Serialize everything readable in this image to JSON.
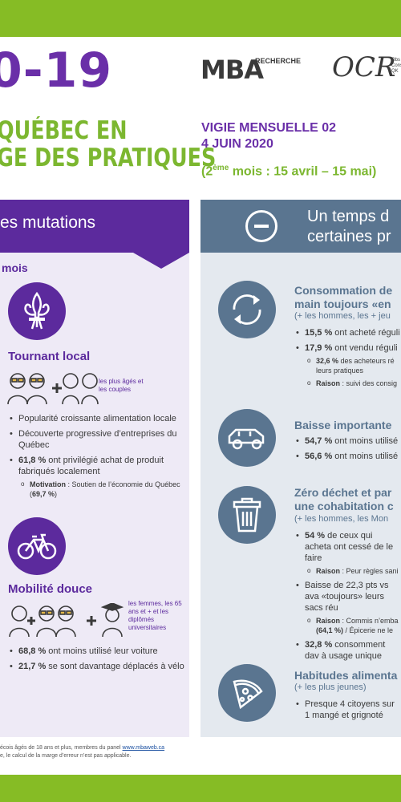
{
  "header": {
    "title": "0-19",
    "subtitle_line1": "QUÉBEC EN",
    "subtitle_line2": "GE DES PRATIQUES",
    "vigie_line1": "VIGIE MENSUELLE 02",
    "vigie_line2": "4 JUIN 2020",
    "period_prefix": "(2",
    "period_sup": "ème",
    "period_rest": " mois : 15 avril – 15 mai)",
    "logo_mba": "MBA",
    "logo_recherche": "RECHERCHE",
    "logo_ocr": "OCR",
    "logo_ocr_small": "Obs Cons QK"
  },
  "left": {
    "heading": "es mutations",
    "mois": "mois",
    "local": {
      "title": "Tournant local",
      "group": "les plus âgés et les couples",
      "bullets": [
        "Popularité croissante alimentation locale",
        "Découverte progressive d’entreprises du Québec"
      ],
      "b3_bold": "61,8 %",
      "b3_rest": " ont privilégié achat de produit fabriqués localement",
      "sub_bold": "Motivation",
      "sub_rest": " : Soutien de l’économie du Québec (",
      "sub_pct": "69,7 %",
      "sub_end": ")"
    },
    "mobilite": {
      "title": "Mobilité douce",
      "group": "les femmes, les 65 ans et + et les diplômés universitaires",
      "b1_bold": "68,8 %",
      "b1_rest": " ont moins utilisé leur voiture",
      "b2_bold": "21,7 %",
      "b2_rest": " se sont davantage déplacés à vélo"
    }
  },
  "right": {
    "heading_line1": "Un temps d",
    "heading_line2": "certaines pr",
    "conso": {
      "title_line1": "Consommation de",
      "title_line2": "main toujours «en",
      "sub": "(+ les hommes, les + jeu",
      "b1_bold": "15,5 %",
      "b1_rest": " ont acheté réguli",
      "b2_bold": "17,9 %",
      "b2_rest": " ont vendu réguli",
      "s1_bold": "32,6 %",
      "s1_rest": " des acheteurs ré leurs pratiques",
      "s2_bold": "Raison",
      "s2_rest": " : suivi des consig"
    },
    "baisse": {
      "title": "Baisse importante",
      "b1_bold": "54,7 %",
      "b1_rest": " ont moins utilisé",
      "b2_bold": "56,6 %",
      "b2_rest": " ont moins utilisé"
    },
    "zero": {
      "title_line1": "Zéro déchet et par",
      "title_line2": "une cohabitation c",
      "sub": "(+ les hommes, les Mon",
      "b1_bold": "54 %",
      "b1_rest": " de ceux qui acheta ont cessé de le faire",
      "s1_bold": "Raison",
      "s1_rest": " : Peur règles sani",
      "b2_text": "Baisse de 22,3 pts vs ava «toujours» leurs sacs réu",
      "s2_bold": "Raison",
      "s2_rest": " : Commis n’emba",
      "s2_pct": "(64,1 %)",
      "s2_end": " / Épicerie ne le",
      "b3_bold": "32,8 %",
      "b3_rest": " consomment dav à usage unique"
    },
    "habitudes": {
      "title": "Habitudes alimenta",
      "sub": "(+ les plus jeunes)",
      "b1": "Presque 4 citoyens sur 1 mangé et grignoté"
    }
  },
  "footer": {
    "line1_pre": "écois âgés de 18 ans et plus, membres du panel ",
    "line1_link": "www.mbaweb.ca",
    "line2": "e, le calcul de la marge d’erreur n’est pas applicable."
  },
  "colors": {
    "green": "#86bc25",
    "purple": "#5c2a9d",
    "slate": "#5a7590"
  }
}
